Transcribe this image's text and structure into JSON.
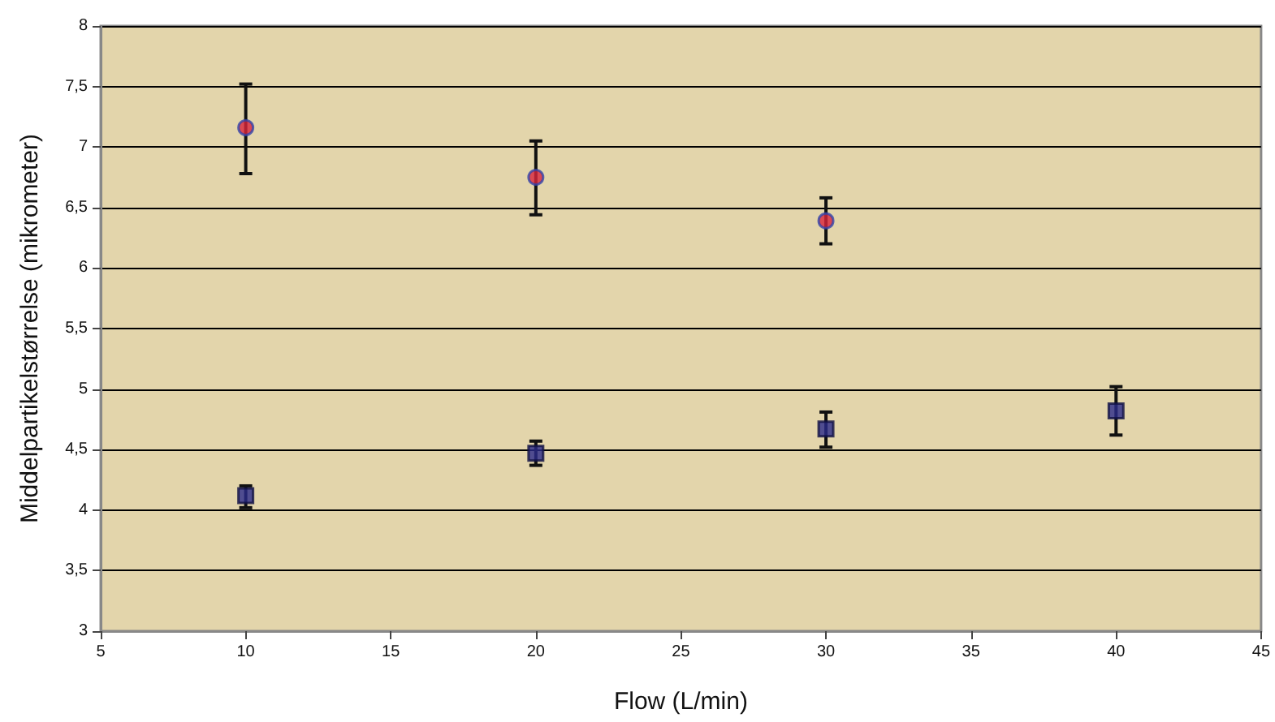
{
  "chart_data": {
    "type": "scatter",
    "xlabel": "Flow (L/min)",
    "ylabel": "Middelpartikelstørrelse (mikrometer)",
    "series": [
      {
        "color": "#d8243c",
        "marker": "circle",
        "x": [
          10,
          20,
          30
        ],
        "values": [
          7.16,
          6.75,
          6.39
        ],
        "errors": [
          [
            6.78,
            7.52
          ],
          [
            6.44,
            7.05
          ],
          [
            6.2,
            6.58
          ]
        ]
      },
      {
        "color": "#2b2b8a",
        "marker": "square",
        "x": [
          10,
          20,
          30,
          40
        ],
        "values": [
          4.12,
          4.47,
          4.67,
          4.82
        ],
        "errors": [
          [
            4.02,
            4.2
          ],
          [
            4.37,
            4.57
          ],
          [
            4.52,
            4.81
          ],
          [
            4.62,
            5.02
          ]
        ]
      }
    ],
    "xlim": [
      5,
      45
    ],
    "xticks": [
      5,
      10,
      15,
      20,
      25,
      30,
      35,
      40,
      45
    ],
    "ylim": [
      3,
      8
    ],
    "yticks": [
      3,
      {
        "value": 3.5,
        "label": "3,5"
      },
      4,
      {
        "value": 4.5,
        "label": "4,5"
      },
      5,
      {
        "value": 5.5,
        "label": "5,5"
      },
      6,
      {
        "value": 6.5,
        "label": "6,5"
      },
      7,
      {
        "value": 7.5,
        "label": "7,5"
      },
      8
    ],
    "grid": "y"
  }
}
